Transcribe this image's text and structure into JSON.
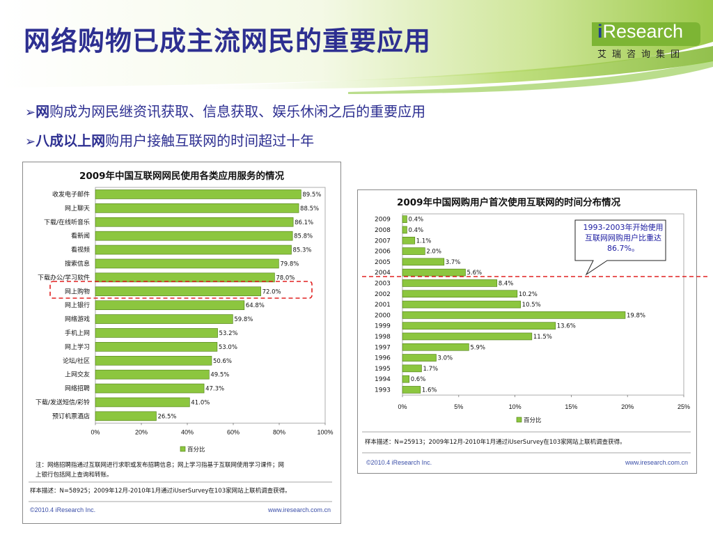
{
  "slide": {
    "title": "网络购物已成主流网民的重要应用",
    "logo": {
      "brand_i": "i",
      "brand_rest": "Research",
      "cn": "艾瑞咨询集团"
    },
    "bullets": [
      {
        "arrow": "➢",
        "bold": "网",
        "rest": "购成为网民继资讯获取、信息获取、娱乐休闲之后的重要应用"
      },
      {
        "arrow": "➢",
        "bold": "八成以上网",
        "rest": "购用户接触互联网的时间超过十年"
      }
    ],
    "colors": {
      "title": "#2d2f91",
      "bar": "#8cc63f",
      "bar_stroke": "#4a7a10",
      "highlight": "#e02020"
    }
  },
  "left_chart_text": {
    "note": "注：网络招聘指通过互联网进行求职或发布招聘信息；网上学习指基于互联网使用学习课件；网上银行包括网上查询和转账。",
    "note_line1": "注：网络招聘指通过互联网进行求职或发布招聘信息；网上学习指基于互联网使用学习课件；网",
    "note_line2": "上银行包括网上查询和转账。",
    "sample": "样本描述：N=58925；2009年12月-2010年1月通过iUserSurvey在103家网站上联机调查获得。",
    "copyright": "©2010.4 iResearch Inc.",
    "url": "www.iresearch.com.cn"
  },
  "right_chart_text": {
    "sample": "样本描述：N=25913；2009年12月-2010年1月通过iUserSurvey在103家网站上联机调查获得。",
    "copyright": "©2010.4 iResearch Inc.",
    "url": "www.iresearch.com.cn",
    "callout": "1993-2003年开始使用互联网网购用户比重达86.7%。"
  },
  "chart_data": [
    {
      "type": "bar",
      "orientation": "horizontal",
      "title": "2009年中国互联网网民使用各类应用服务的情况",
      "categories": [
        "收发电子邮件",
        "网上聊天",
        "下载/在线听音乐",
        "看新闻",
        "看视频",
        "搜索信息",
        "下载办公/学习软件",
        "网上购物",
        "网上银行",
        "网络游戏",
        "手机上网",
        "网上学习",
        "论坛/社区",
        "上网交友",
        "网络招聘",
        "下载/发送短信/彩铃",
        "预订机票酒店"
      ],
      "series": [
        {
          "name": "百分比",
          "values": [
            89.5,
            88.5,
            86.1,
            85.8,
            85.3,
            79.8,
            78.0,
            72.0,
            64.8,
            59.8,
            53.2,
            53.0,
            50.6,
            49.5,
            47.3,
            41.0,
            26.5
          ]
        }
      ],
      "value_labels": [
        "89.5%",
        "88.5%",
        "86.1%",
        "85.8%",
        "85.3%",
        "79.8%",
        "78.0%",
        "72.0%",
        "64.8%",
        "59.8%",
        "53.2%",
        "53.0%",
        "50.6%",
        "49.5%",
        "47.3%",
        "41.0%",
        "26.5%"
      ],
      "xticks": [
        "0%",
        "20%",
        "40%",
        "60%",
        "80%",
        "100%"
      ],
      "xlim": [
        0,
        100
      ],
      "highlight_category": "网上购物",
      "legend": "bottom"
    },
    {
      "type": "bar",
      "orientation": "horizontal",
      "title": "2009年中国网购用户首次使用互联网的时间分布情况",
      "categories": [
        "2009",
        "2008",
        "2007",
        "2006",
        "2005",
        "2004",
        "2003",
        "2002",
        "2001",
        "2000",
        "1999",
        "1998",
        "1997",
        "1996",
        "1995",
        "1994",
        "1993"
      ],
      "series": [
        {
          "name": "百分比",
          "values": [
            0.4,
            0.4,
            1.1,
            2.0,
            3.7,
            5.6,
            8.4,
            10.2,
            10.5,
            19.8,
            13.6,
            11.5,
            5.9,
            3.0,
            1.7,
            0.6,
            1.6
          ]
        }
      ],
      "value_labels": [
        "0.4%",
        "0.4%",
        "1.1%",
        "2.0%",
        "3.7%",
        "5.6%",
        "8.4%",
        "10.2%",
        "10.5%",
        "19.8%",
        "13.6%",
        "11.5%",
        "5.9%",
        "3.0%",
        "1.7%",
        "0.6%",
        "1.6%"
      ],
      "xticks": [
        "0%",
        "5%",
        "10%",
        "15%",
        "20%",
        "25%"
      ],
      "xlim": [
        0,
        25
      ],
      "legend": "bottom"
    }
  ]
}
